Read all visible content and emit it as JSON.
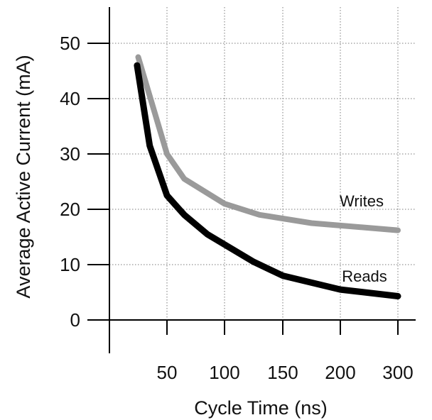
{
  "chart_data": {
    "type": "line",
    "xlabel": "Cycle Time (ns)",
    "ylabel": "Average Active Current (mA)",
    "x_tick_labels": [
      "50",
      "100",
      "150",
      "200",
      "300"
    ],
    "y_ticks": [
      0,
      10,
      20,
      30,
      40,
      50
    ],
    "ylim": [
      0,
      55
    ],
    "grid": true,
    "series": [
      {
        "name": "Writes",
        "color": "#9a9a9a",
        "points": [
          {
            "x": 25,
            "y": 47.5
          },
          {
            "x": 50,
            "y": 30
          },
          {
            "x": 65,
            "y": 25.5
          },
          {
            "x": 100,
            "y": 21
          },
          {
            "x": 130,
            "y": 19
          },
          {
            "x": 175,
            "y": 17.5
          },
          {
            "x": 300,
            "y": 16.2
          }
        ]
      },
      {
        "name": "Reads",
        "color": "#000000",
        "points": [
          {
            "x": 24,
            "y": 46
          },
          {
            "x": 35,
            "y": 31.5
          },
          {
            "x": 50,
            "y": 22.5
          },
          {
            "x": 65,
            "y": 19
          },
          {
            "x": 85,
            "y": 15.5
          },
          {
            "x": 125,
            "y": 10.5
          },
          {
            "x": 150,
            "y": 8
          },
          {
            "x": 200,
            "y": 5.5
          },
          {
            "x": 300,
            "y": 4.3
          }
        ]
      }
    ]
  }
}
